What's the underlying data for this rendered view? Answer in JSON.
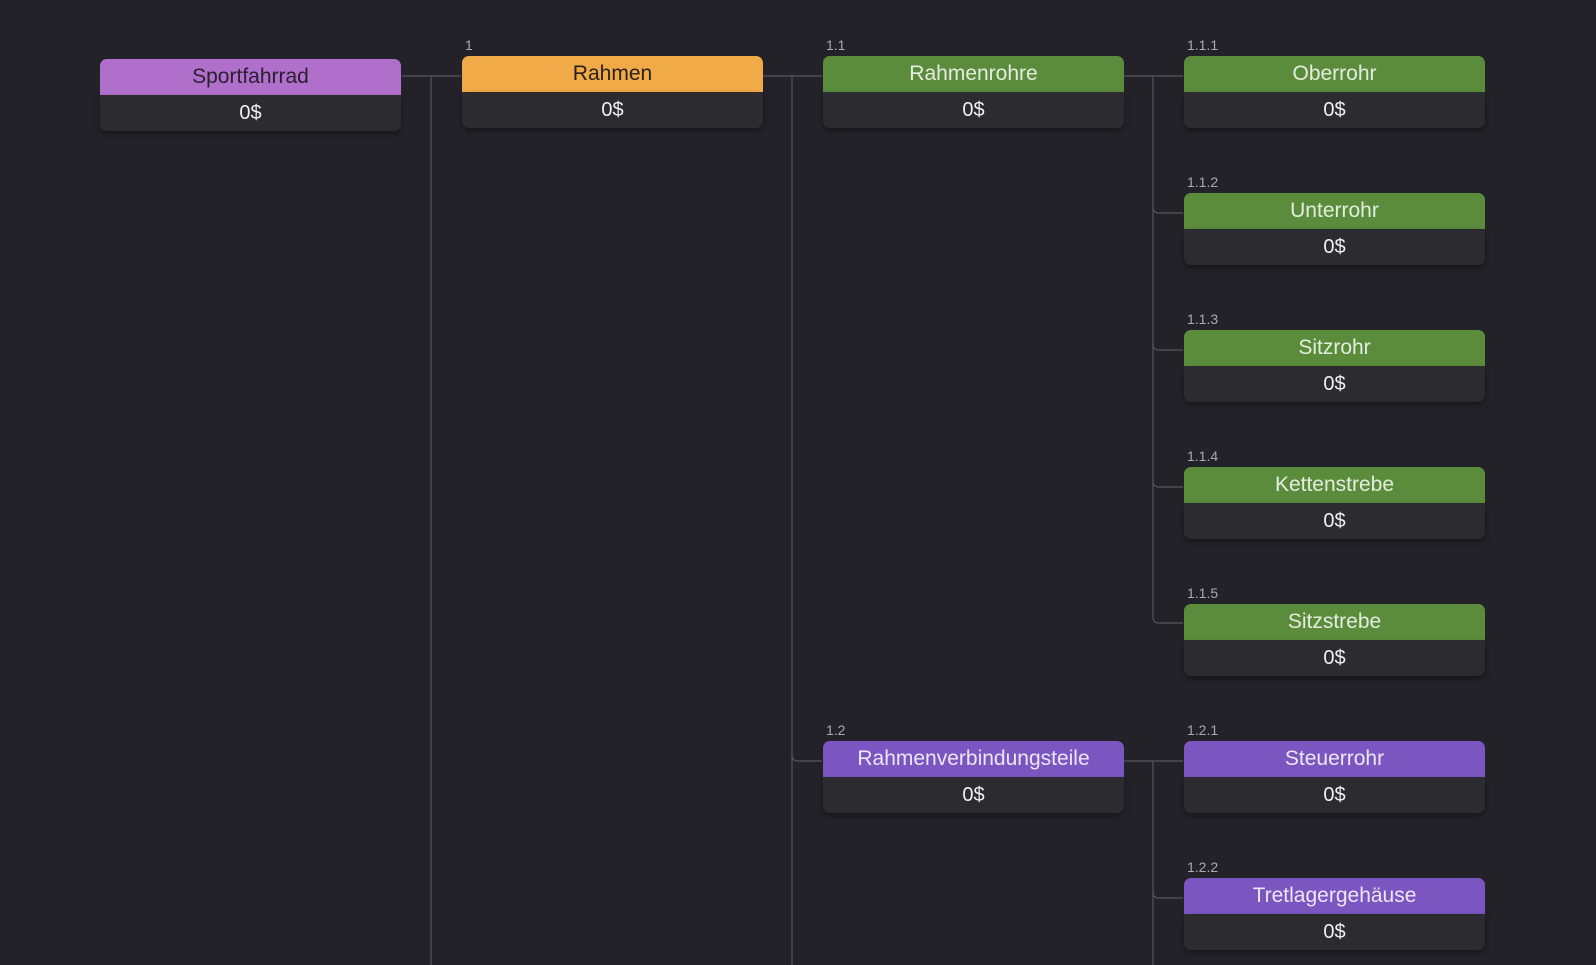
{
  "nodes": {
    "root": {
      "wbs": "",
      "label": "Sportfahrrad",
      "cost": "0$"
    },
    "n1": {
      "wbs": "1",
      "label": "Rahmen",
      "cost": "0$"
    },
    "n11": {
      "wbs": "1.1",
      "label": "Rahmenrohre",
      "cost": "0$"
    },
    "n111": {
      "wbs": "1.1.1",
      "label": "Oberrohr",
      "cost": "0$"
    },
    "n112": {
      "wbs": "1.1.2",
      "label": "Unterrohr",
      "cost": "0$"
    },
    "n113": {
      "wbs": "1.1.3",
      "label": "Sitzrohr",
      "cost": "0$"
    },
    "n114": {
      "wbs": "1.1.4",
      "label": "Kettenstrebe",
      "cost": "0$"
    },
    "n115": {
      "wbs": "1.1.5",
      "label": "Sitzstrebe",
      "cost": "0$"
    },
    "n12": {
      "wbs": "1.2",
      "label": "Rahmenverbindungsteile",
      "cost": "0$"
    },
    "n121": {
      "wbs": "1.2.1",
      "label": "Steuerrohr",
      "cost": "0$"
    },
    "n122": {
      "wbs": "1.2.2",
      "label": "Tretlagergehäuse",
      "cost": "0$"
    }
  },
  "colors": {
    "background": "#222228",
    "level0": "#b06fcb",
    "level1": "#f1aa48",
    "group_1_1": "#5a8c3c",
    "group_1_2": "#7b56c0",
    "connector": "#55555b"
  }
}
